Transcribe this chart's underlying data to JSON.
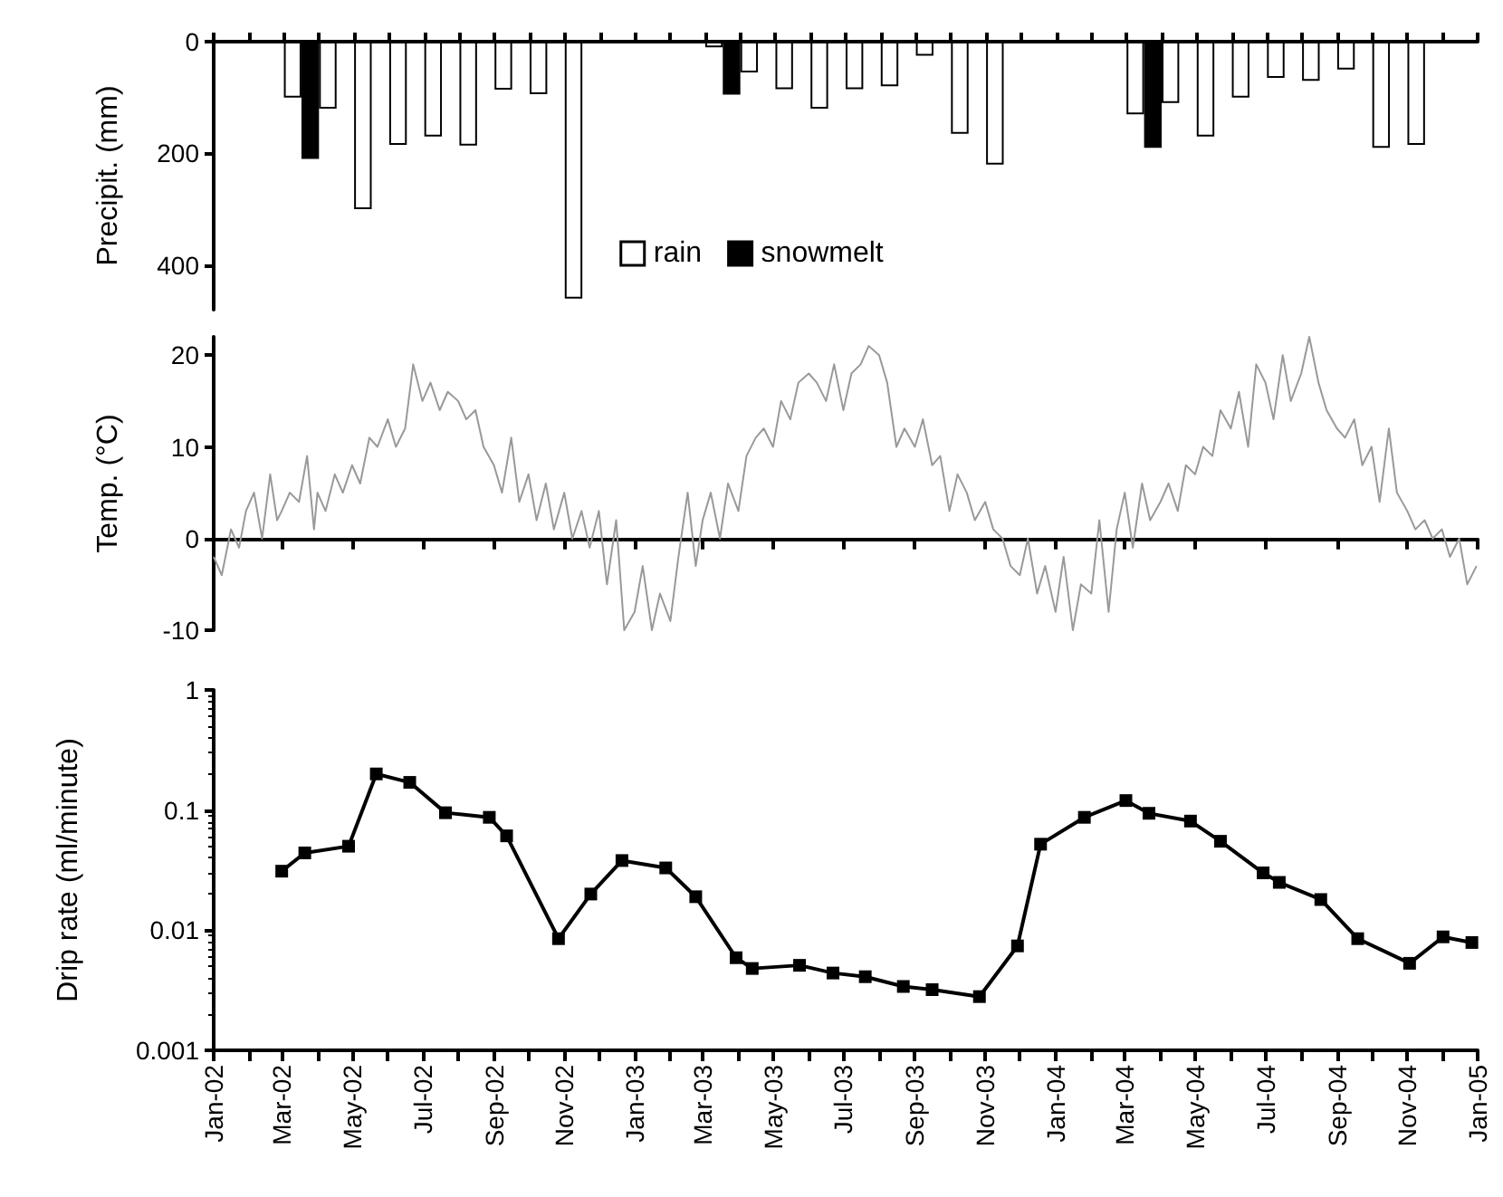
{
  "chart_data": [
    {
      "type": "bar",
      "ylabel": "Precipit. (mm)",
      "categories": [
        null,
        null,
        null,
        null,
        null,
        null,
        null,
        null,
        null,
        null,
        null,
        null,
        null,
        null,
        null,
        null,
        null,
        null,
        null,
        null,
        null,
        null,
        null,
        null,
        null,
        null,
        null,
        null,
        null,
        null,
        null,
        null,
        null,
        null,
        null,
        null
      ],
      "series": [
        {
          "name": "rain",
          "color": "#ffffff",
          "values": [
            null,
            null,
            100,
            120,
            300,
            185,
            170,
            186,
            86,
            94,
            460,
            null,
            null,
            null,
            10,
            55,
            85,
            120,
            85,
            80,
            25,
            165,
            220,
            null,
            null,
            null,
            130,
            110,
            170,
            100,
            65,
            70,
            50,
            190,
            185,
            null
          ]
        },
        {
          "name": "snowmelt",
          "color": "#000000",
          "values": [
            null,
            null,
            210,
            null,
            null,
            null,
            null,
            null,
            null,
            null,
            null,
            null,
            null,
            null,
            95,
            null,
            null,
            null,
            null,
            null,
            null,
            null,
            null,
            null,
            null,
            null,
            190,
            null,
            null,
            null,
            null,
            null,
            null,
            null,
            null,
            null
          ]
        }
      ],
      "ylim": [
        480,
        0
      ],
      "yticks": [
        0,
        200,
        400
      ],
      "legend": "bottom",
      "tick_labels": "y"
    },
    {
      "type": "line",
      "ylabel": "Temp. (°C)",
      "color": "#999999",
      "marker": "none",
      "xlim": [
        "2002-01",
        "2005-01"
      ],
      "ylim": [
        -10,
        22
      ],
      "yticks": [
        -10,
        0,
        10,
        20
      ],
      "tick_labels": "y",
      "xticks": [
        {
          "value": "2002-01",
          "label": null
        },
        {
          "value": "2002-03",
          "label": null
        },
        {
          "value": "2002-05",
          "label": null
        },
        {
          "value": "2002-07",
          "label": null
        },
        {
          "value": "2002-09",
          "label": null
        },
        {
          "value": "2002-11",
          "label": null
        },
        {
          "value": "2003-01",
          "label": null
        },
        {
          "value": "2003-03",
          "label": null
        },
        {
          "value": "2003-05",
          "label": null
        },
        {
          "value": "2003-07",
          "label": null
        },
        {
          "value": "2003-09",
          "label": null
        },
        {
          "value": "2003-11",
          "label": null
        },
        {
          "value": "2004-01",
          "label": null
        },
        {
          "value": "2004-03",
          "label": null
        },
        {
          "value": "2004-05",
          "label": null
        },
        {
          "value": "2004-07",
          "label": null
        },
        {
          "value": "2004-09",
          "label": null
        },
        {
          "value": "2004-11",
          "label": null
        },
        {
          "value": "2005-01",
          "label": null
        }
      ],
      "x": [
        "2002-01-01",
        "2002-01-08",
        "2002-01-16",
        "2002-01-23",
        "2002-01-29",
        "2002-02-05",
        "2002-02-12",
        "2002-02-19",
        "2002-02-25",
        "2002-03-01",
        "2002-03-08",
        "2002-03-16",
        "2002-03-23",
        "2002-03-29",
        "2002-04-01",
        "2002-04-08",
        "2002-04-16",
        "2002-04-23",
        "2002-05-01",
        "2002-05-08",
        "2002-05-16",
        "2002-05-23",
        "2002-06-01",
        "2002-06-08",
        "2002-06-16",
        "2002-06-23",
        "2002-07-01",
        "2002-07-08",
        "2002-07-16",
        "2002-07-23",
        "2002-08-01",
        "2002-08-08",
        "2002-08-16",
        "2002-08-23",
        "2002-09-01",
        "2002-09-08",
        "2002-09-16",
        "2002-09-23",
        "2002-10-01",
        "2002-10-08",
        "2002-10-16",
        "2002-10-23",
        "2002-11-01",
        "2002-11-08",
        "2002-11-16",
        "2002-11-23",
        "2002-12-01",
        "2002-12-08",
        "2002-12-16",
        "2002-12-23",
        "2003-01-01",
        "2003-01-08",
        "2003-01-16",
        "2003-01-23",
        "2003-02-01",
        "2003-02-08",
        "2003-02-16",
        "2003-02-23",
        "2003-03-01",
        "2003-03-08",
        "2003-03-16",
        "2003-03-23",
        "2003-04-01",
        "2003-04-08",
        "2003-04-16",
        "2003-04-23",
        "2003-05-01",
        "2003-05-08",
        "2003-05-16",
        "2003-05-23",
        "2003-06-01",
        "2003-06-08",
        "2003-06-16",
        "2003-06-23",
        "2003-07-01",
        "2003-07-08",
        "2003-07-16",
        "2003-07-23",
        "2003-08-01",
        "2003-08-08",
        "2003-08-16",
        "2003-08-23",
        "2003-09-01",
        "2003-09-08",
        "2003-09-16",
        "2003-09-23",
        "2003-10-01",
        "2003-10-08",
        "2003-10-16",
        "2003-10-23",
        "2003-11-01",
        "2003-11-08",
        "2003-11-16",
        "2003-11-23",
        "2003-12-01",
        "2003-12-08",
        "2003-12-16",
        "2003-12-23",
        "2004-01-01",
        "2004-01-08",
        "2004-01-16",
        "2004-01-23",
        "2004-02-01",
        "2004-02-08",
        "2004-02-16",
        "2004-02-23",
        "2004-03-01",
        "2004-03-08",
        "2004-03-16",
        "2004-03-23",
        "2004-04-01",
        "2004-04-08",
        "2004-04-16",
        "2004-04-23",
        "2004-05-01",
        "2004-05-08",
        "2004-05-16",
        "2004-05-23",
        "2004-06-01",
        "2004-06-08",
        "2004-06-16",
        "2004-06-23",
        "2004-07-01",
        "2004-07-08",
        "2004-07-16",
        "2004-07-23",
        "2004-08-01",
        "2004-08-08",
        "2004-08-16",
        "2004-08-23",
        "2004-09-01",
        "2004-09-08",
        "2004-09-16",
        "2004-09-23",
        "2004-10-01",
        "2004-10-08",
        "2004-10-16",
        "2004-10-23",
        "2004-11-01",
        "2004-11-08",
        "2004-11-16",
        "2004-11-23",
        "2004-12-01",
        "2004-12-08",
        "2004-12-16",
        "2004-12-23",
        "2004-12-31"
      ],
      "values": [
        -2,
        -4,
        1,
        -1,
        3,
        5,
        0,
        7,
        2,
        3,
        5,
        4,
        9,
        1,
        5,
        3,
        7,
        5,
        8,
        6,
        11,
        10,
        13,
        10,
        12,
        19,
        15,
        17,
        14,
        16,
        15,
        13,
        14,
        10,
        8,
        5,
        11,
        4,
        7,
        2,
        6,
        1,
        5,
        0,
        3,
        -1,
        3,
        -5,
        2,
        -10,
        -8,
        -3,
        -10,
        -6,
        -9,
        -2,
        5,
        -3,
        2,
        5,
        0,
        6,
        3,
        9,
        11,
        12,
        10,
        15,
        13,
        17,
        18,
        17,
        15,
        19,
        14,
        18,
        19,
        21,
        20,
        17,
        10,
        12,
        10,
        13,
        8,
        9,
        3,
        7,
        5,
        2,
        4,
        1,
        0,
        -3,
        -4,
        0,
        -6,
        -3,
        -8,
        -2,
        -10,
        -5,
        -6,
        2,
        -8,
        1,
        5,
        -1,
        6,
        2,
        4,
        6,
        3,
        8,
        7,
        10,
        9,
        14,
        12,
        16,
        10,
        19,
        17,
        13,
        20,
        15,
        18,
        22,
        17,
        14,
        12,
        11,
        13,
        8,
        10,
        4,
        12,
        5,
        3,
        1,
        2,
        0,
        1,
        -2,
        0,
        -5,
        -3
      ]
    },
    {
      "type": "line",
      "ylabel": "Drip rate (ml/minute)",
      "color": "#000000",
      "marker": "square",
      "log": true,
      "ylim": [
        0.001,
        1
      ],
      "yticks": [
        0.001,
        0.01,
        0.1,
        1
      ],
      "xlim": [
        "2002-01",
        "2005-01"
      ],
      "xticks": [
        {
          "value": "2002-01",
          "label": "Jan-02"
        },
        {
          "value": "2002-02",
          "label": null
        },
        {
          "value": "2002-03",
          "label": "Mar-02"
        },
        {
          "value": "2002-04",
          "label": null
        },
        {
          "value": "2002-05",
          "label": "May-02"
        },
        {
          "value": "2002-06",
          "label": null
        },
        {
          "value": "2002-07",
          "label": "Jul-02"
        },
        {
          "value": "2002-08",
          "label": null
        },
        {
          "value": "2002-09",
          "label": "Sep-02"
        },
        {
          "value": "2002-10",
          "label": null
        },
        {
          "value": "2002-11",
          "label": "Nov-02"
        },
        {
          "value": "2002-12",
          "label": null
        },
        {
          "value": "2003-01",
          "label": "Jan-03"
        },
        {
          "value": "2003-02",
          "label": null
        },
        {
          "value": "2003-03",
          "label": "Mar-03"
        },
        {
          "value": "2003-04",
          "label": null
        },
        {
          "value": "2003-05",
          "label": "May-03"
        },
        {
          "value": "2003-06",
          "label": null
        },
        {
          "value": "2003-07",
          "label": "Jul-03"
        },
        {
          "value": "2003-08",
          "label": null
        },
        {
          "value": "2003-09",
          "label": "Sep-03"
        },
        {
          "value": "2003-10",
          "label": null
        },
        {
          "value": "2003-11",
          "label": "Nov-03"
        },
        {
          "value": "2003-12",
          "label": null
        },
        {
          "value": "2004-01",
          "label": "Jan-04"
        },
        {
          "value": "2004-02",
          "label": null
        },
        {
          "value": "2004-03",
          "label": "Mar-04"
        },
        {
          "value": "2004-04",
          "label": null
        },
        {
          "value": "2004-05",
          "label": "May-04"
        },
        {
          "value": "2004-06",
          "label": null
        },
        {
          "value": "2004-07",
          "label": "Jul-04"
        },
        {
          "value": "2004-08",
          "label": null
        },
        {
          "value": "2004-09",
          "label": "Sep-04"
        },
        {
          "value": "2004-10",
          "label": null
        },
        {
          "value": "2004-11",
          "label": "Nov-04"
        },
        {
          "value": "2004-12",
          "label": null
        },
        {
          "value": "2005-01",
          "label": "Jan-05"
        }
      ],
      "x": [
        "2002-03-01",
        "2002-03-21",
        "2002-04-28",
        "2002-05-22",
        "2002-06-20",
        "2002-07-21",
        "2002-08-28",
        "2002-09-12",
        "2002-10-27",
        "2002-11-24",
        "2002-12-21",
        "2003-01-28",
        "2003-02-23",
        "2003-03-30",
        "2003-04-13",
        "2003-05-24",
        "2003-06-22",
        "2003-07-20",
        "2003-08-22",
        "2003-09-16",
        "2003-10-27",
        "2003-11-29",
        "2003-12-19",
        "2004-01-26",
        "2004-03-02",
        "2004-03-22",
        "2004-04-27",
        "2004-05-23",
        "2004-06-29",
        "2004-07-13",
        "2004-08-18",
        "2004-09-19",
        "2004-11-03",
        "2004-12-02",
        "2004-12-27"
      ],
      "values": [
        0.031,
        0.044,
        0.05,
        0.2,
        0.17,
        0.095,
        0.087,
        0.061,
        0.0085,
        0.02,
        0.038,
        0.033,
        0.019,
        0.0059,
        0.0048,
        0.0051,
        0.0044,
        0.0041,
        0.0034,
        0.0032,
        0.0028,
        0.0074,
        0.052,
        0.087,
        0.12,
        0.094,
        0.081,
        0.055,
        0.03,
        0.025,
        0.018,
        0.0085,
        0.0053,
        0.0088,
        0.0079
      ]
    }
  ]
}
